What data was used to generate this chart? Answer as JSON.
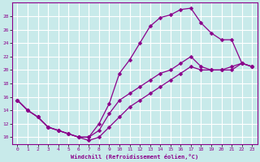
{
  "xlabel": "Windchill (Refroidissement éolien,°C)",
  "bg_color": "#c8eaea",
  "line_color": "#8b008b",
  "grid_color": "#ffffff",
  "curve1_x": [
    0,
    1,
    2,
    3,
    4,
    5,
    6,
    7,
    8,
    9,
    10,
    11,
    12,
    13,
    14,
    15,
    16,
    17,
    18,
    19,
    20,
    21,
    22,
    23
  ],
  "curve1_y": [
    15.5,
    14.0,
    13.0,
    11.5,
    11.0,
    10.5,
    10.0,
    10.0,
    12.0,
    15.0,
    19.5,
    21.5,
    24.0,
    26.5,
    27.8,
    28.2,
    29.0,
    29.2,
    27.0,
    25.5,
    24.5,
    24.5,
    21.0,
    20.5
  ],
  "curve2_x": [
    0,
    1,
    2,
    3,
    4,
    5,
    6,
    7,
    8,
    9,
    10,
    11,
    12,
    13,
    14,
    15,
    16,
    17,
    18,
    19,
    20,
    21,
    22,
    23
  ],
  "curve2_y": [
    15.5,
    14.0,
    13.0,
    11.5,
    11.0,
    10.5,
    10.0,
    10.0,
    11.0,
    13.5,
    15.5,
    16.5,
    17.5,
    18.5,
    19.5,
    20.0,
    21.0,
    22.0,
    20.5,
    20.0,
    20.0,
    20.0,
    21.0,
    20.5
  ],
  "curve3_x": [
    0,
    1,
    2,
    3,
    4,
    5,
    6,
    7,
    8,
    9,
    10,
    11,
    12,
    13,
    14,
    15,
    16,
    17,
    18,
    19,
    20,
    21,
    22,
    23
  ],
  "curve3_y": [
    15.5,
    14.0,
    13.0,
    11.5,
    11.0,
    10.5,
    10.0,
    9.5,
    10.0,
    11.5,
    13.0,
    14.5,
    15.5,
    16.5,
    17.5,
    18.5,
    19.5,
    20.5,
    20.0,
    20.0,
    20.0,
    20.5,
    21.0,
    20.5
  ],
  "xlim": [
    -0.5,
    23.5
  ],
  "ylim": [
    9,
    30
  ],
  "yticks": [
    10,
    12,
    14,
    16,
    18,
    20,
    22,
    24,
    26,
    28
  ],
  "xticks": [
    0,
    1,
    2,
    3,
    4,
    5,
    6,
    7,
    8,
    9,
    10,
    11,
    12,
    13,
    14,
    15,
    16,
    17,
    18,
    19,
    20,
    21,
    22,
    23
  ]
}
